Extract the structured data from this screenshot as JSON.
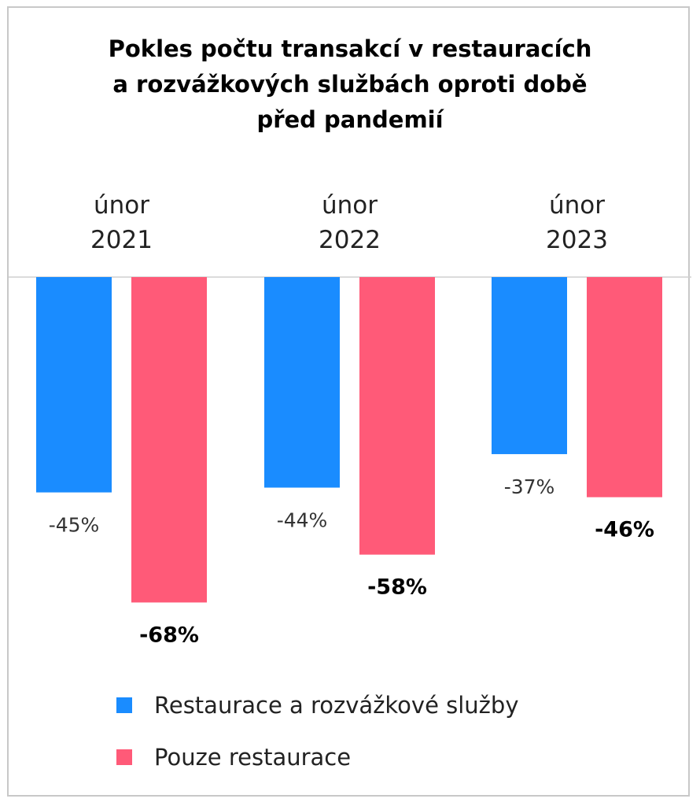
{
  "chart_data": {
    "type": "bar",
    "title_lines": [
      "Pokles počtu transakcí v restauracích",
      "a rozvážkových službách oproti době",
      "před pandemií"
    ],
    "categories": [
      [
        "únor",
        "2021"
      ],
      [
        "únor",
        "2022"
      ],
      [
        "únor",
        "2023"
      ]
    ],
    "series": [
      {
        "name": "Restaurace a rozvážkové služby",
        "color": "#1a8cff",
        "values": [
          -45,
          -44,
          -37
        ],
        "labels": [
          "-45%",
          "-44%",
          "-37%"
        ],
        "label_bold": false
      },
      {
        "name": "Pouze restaurace",
        "color": "#ff5a78",
        "values": [
          -68,
          -58,
          -46
        ],
        "labels": [
          "-68%",
          "-58%",
          "-46%"
        ],
        "label_bold": true
      }
    ],
    "ylim": [
      -68,
      0
    ],
    "grid": false,
    "legend_position": "bottom"
  }
}
